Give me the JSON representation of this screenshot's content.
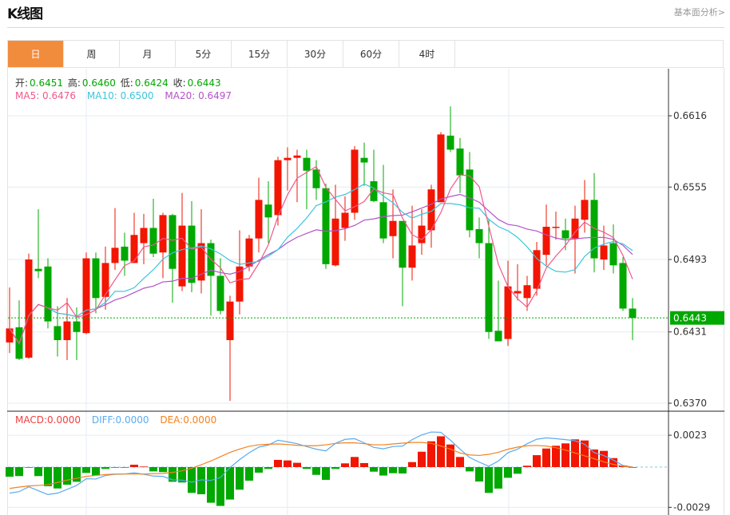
{
  "header": {
    "title": "K线图",
    "link": "基本面分析>"
  },
  "tabs": [
    {
      "label": "日",
      "active": true
    },
    {
      "label": "周"
    },
    {
      "label": "月"
    },
    {
      "label": "5分"
    },
    {
      "label": "15分"
    },
    {
      "label": "30分"
    },
    {
      "label": "60分"
    },
    {
      "label": "4时"
    }
  ],
  "ohlc_legend": {
    "open_label": "开:",
    "open": "0.6451",
    "high_label": "高:",
    "high": "0.6460",
    "low_label": "低:",
    "low": "0.6424",
    "close_label": "收:",
    "close": "0.6443"
  },
  "ma_legend": {
    "ma5": "MA5: 0.6476",
    "ma10": "MA10: 0.6500",
    "ma20": "MA20: 0.6497"
  },
  "macd_legend": {
    "macd": "MACD:0.0000",
    "diff": "DIFF:0.0000",
    "dea": "DEA:0.0000"
  },
  "colors": {
    "up": "#f21500",
    "down": "#00a800",
    "ma5": "#f0588a",
    "ma10": "#3ec5db",
    "ma20": "#b452c9",
    "diff": "#5aabf0",
    "dea": "#f5821f",
    "accent": "#f28c3d"
  },
  "chart_data": {
    "type": "candlestick",
    "price_axis_ticks": [
      "0.6616",
      "0.6555",
      "0.6493",
      "0.6431",
      "0.6370"
    ],
    "price_range": [
      0.637,
      0.6616
    ],
    "current_price": "0.6443",
    "macd_axis_ticks": [
      "0.0023",
      "-0.0029"
    ],
    "macd_range": [
      -0.0029,
      0.0023
    ],
    "candles": [
      [
        0.6422,
        0.6469,
        0.6413,
        0.6434
      ],
      [
        0.6435,
        0.6458,
        0.6407,
        0.6408
      ],
      [
        0.6409,
        0.6498,
        0.6408,
        0.6493
      ],
      [
        0.6485,
        0.6536,
        0.6477,
        0.6483
      ],
      [
        0.6487,
        0.6494,
        0.6434,
        0.644
      ],
      [
        0.6436,
        0.6453,
        0.641,
        0.6424
      ],
      [
        0.6424,
        0.646,
        0.6407,
        0.644
      ],
      [
        0.644,
        0.6452,
        0.6407,
        0.6431
      ],
      [
        0.643,
        0.6499,
        0.6429,
        0.6494
      ],
      [
        0.6494,
        0.6499,
        0.6447,
        0.646
      ],
      [
        0.6461,
        0.6504,
        0.645,
        0.649
      ],
      [
        0.649,
        0.6537,
        0.6484,
        0.6503
      ],
      [
        0.6504,
        0.6516,
        0.6479,
        0.6492
      ],
      [
        0.649,
        0.6533,
        0.649,
        0.6514
      ],
      [
        0.6507,
        0.6532,
        0.6489,
        0.652
      ],
      [
        0.652,
        0.6545,
        0.6495,
        0.6498
      ],
      [
        0.6499,
        0.6533,
        0.6477,
        0.6531
      ],
      [
        0.6531,
        0.6532,
        0.6456,
        0.6485
      ],
      [
        0.647,
        0.655,
        0.6466,
        0.6522
      ],
      [
        0.6522,
        0.6543,
        0.6465,
        0.6473
      ],
      [
        0.6475,
        0.6536,
        0.6464,
        0.6507
      ],
      [
        0.6507,
        0.651,
        0.6445,
        0.6479
      ],
      [
        0.6479,
        0.6494,
        0.6446,
        0.6449
      ],
      [
        0.6424,
        0.6462,
        0.6372,
        0.6457
      ],
      [
        0.6457,
        0.6518,
        0.6446,
        0.6487
      ],
      [
        0.6487,
        0.6514,
        0.6483,
        0.6511
      ],
      [
        0.6511,
        0.6563,
        0.6499,
        0.6544
      ],
      [
        0.654,
        0.656,
        0.6507,
        0.6529
      ],
      [
        0.6531,
        0.6581,
        0.6522,
        0.6578
      ],
      [
        0.6578,
        0.6589,
        0.6552,
        0.658
      ],
      [
        0.658,
        0.6587,
        0.6542,
        0.6582
      ],
      [
        0.658,
        0.6587,
        0.6536,
        0.6569
      ],
      [
        0.657,
        0.6578,
        0.6544,
        0.6554
      ],
      [
        0.6554,
        0.6558,
        0.6485,
        0.6489
      ],
      [
        0.6488,
        0.6557,
        0.6487,
        0.6528
      ],
      [
        0.652,
        0.6547,
        0.6509,
        0.6533
      ],
      [
        0.6533,
        0.659,
        0.6527,
        0.6587
      ],
      [
        0.658,
        0.6593,
        0.6556,
        0.6576
      ],
      [
        0.656,
        0.6587,
        0.6542,
        0.6543
      ],
      [
        0.6542,
        0.6574,
        0.6507,
        0.6511
      ],
      [
        0.6513,
        0.6553,
        0.6494,
        0.6526
      ],
      [
        0.6526,
        0.6526,
        0.6453,
        0.6486
      ],
      [
        0.6486,
        0.6539,
        0.6475,
        0.6505
      ],
      [
        0.6507,
        0.6536,
        0.6497,
        0.6522
      ],
      [
        0.6518,
        0.6557,
        0.6503,
        0.6553
      ],
      [
        0.6542,
        0.6602,
        0.6542,
        0.66
      ],
      [
        0.6599,
        0.6624,
        0.6585,
        0.6587
      ],
      [
        0.6588,
        0.6597,
        0.655,
        0.6565
      ],
      [
        0.657,
        0.6585,
        0.6512,
        0.6518
      ],
      [
        0.6519,
        0.6529,
        0.6494,
        0.6507
      ],
      [
        0.6507,
        0.6527,
        0.6425,
        0.6431
      ],
      [
        0.6432,
        0.6475,
        0.6423,
        0.6423
      ],
      [
        0.6425,
        0.6492,
        0.6419,
        0.647
      ],
      [
        0.6464,
        0.6489,
        0.6458,
        0.6466
      ],
      [
        0.646,
        0.6479,
        0.6449,
        0.6471
      ],
      [
        0.6468,
        0.6508,
        0.6462,
        0.6501
      ],
      [
        0.6497,
        0.654,
        0.6488,
        0.6521
      ],
      [
        0.652,
        0.6534,
        0.651,
        0.6521
      ],
      [
        0.6518,
        0.6528,
        0.6501,
        0.6511
      ],
      [
        0.6511,
        0.6539,
        0.6481,
        0.6528
      ],
      [
        0.6527,
        0.6561,
        0.6516,
        0.6544
      ],
      [
        0.6544,
        0.6567,
        0.6482,
        0.6494
      ],
      [
        0.6493,
        0.6522,
        0.6484,
        0.6505
      ],
      [
        0.6507,
        0.6523,
        0.6481,
        0.6488
      ],
      [
        0.649,
        0.6495,
        0.6449,
        0.6451
      ],
      [
        0.6451,
        0.646,
        0.6424,
        0.6443
      ]
    ],
    "macd_hist": [
      -0.00069,
      -0.00065,
      -2e-05,
      -0.00065,
      -0.00138,
      -0.00154,
      -0.00127,
      -0.00106,
      -0.00042,
      -0.00061,
      -0.00013,
      -2e-05,
      -2e-05,
      0.00017,
      4e-05,
      -0.00031,
      -0.00036,
      -0.00106,
      -0.00111,
      -0.00186,
      -0.00196,
      -0.00257,
      -0.0028,
      -0.00234,
      -0.00163,
      -0.00098,
      -0.0004,
      -0.00013,
      0.00052,
      0.00048,
      0.00031,
      -0.00013,
      -0.00056,
      -0.00092,
      -0.00013,
      0.00027,
      0.00073,
      0.00029,
      -0.00033,
      -0.00061,
      -0.00044,
      -0.00046,
      0.00036,
      0.00111,
      0.00186,
      0.00222,
      0.00163,
      0.00073,
      -0.00031,
      -0.00104,
      -0.00186,
      -0.00155,
      -0.00077,
      -0.00048,
      0.0001,
      0.00086,
      0.00134,
      0.00154,
      0.00171,
      0.002,
      0.00192,
      0.00127,
      0.00117,
      0.00065,
      0.00012,
      0.0
    ],
    "diff": [
      -0.00188,
      -0.00177,
      -0.00142,
      -0.0017,
      -0.00198,
      -0.00188,
      -0.00161,
      -0.00132,
      -0.00084,
      -0.00086,
      -0.00061,
      -0.00052,
      -0.0005,
      -0.00042,
      -0.00052,
      -0.00065,
      -0.00067,
      -0.00092,
      -0.00094,
      -0.00109,
      -0.00092,
      -0.00096,
      -0.00075,
      -4e-05,
      0.00054,
      0.00104,
      0.00144,
      0.00159,
      0.00194,
      0.00182,
      0.00169,
      0.00148,
      0.00129,
      0.00117,
      0.00171,
      0.002,
      0.00205,
      0.00175,
      0.00142,
      0.00132,
      0.00148,
      0.00152,
      0.00198,
      0.00232,
      0.00253,
      0.00251,
      0.00194,
      0.0013,
      0.00069,
      0.00036,
      6e-05,
      0.00044,
      0.00104,
      0.00129,
      0.00169,
      0.00201,
      0.00211,
      0.00205,
      0.00198,
      0.0019,
      0.00165,
      0.00104,
      0.00083,
      0.0005,
      0.00012,
      0.0
    ],
    "dea": [
      -0.00154,
      -0.00144,
      -0.00136,
      -0.00132,
      -0.00127,
      -0.00111,
      -0.00094,
      -0.00081,
      -0.00067,
      -0.0006,
      -0.00054,
      -0.0005,
      -0.0005,
      -0.0005,
      -0.0005,
      -0.00048,
      -0.00046,
      -0.00038,
      -0.00027,
      -8e-05,
      0.00017,
      0.00044,
      0.00075,
      0.00106,
      0.0013,
      0.0015,
      0.00161,
      0.00165,
      0.00167,
      0.00163,
      0.00157,
      0.00154,
      0.00154,
      0.00161,
      0.00171,
      0.00175,
      0.00175,
      0.00169,
      0.00161,
      0.00161,
      0.00167,
      0.00173,
      0.00178,
      0.00178,
      0.00171,
      0.00152,
      0.00129,
      0.00102,
      0.00088,
      0.00084,
      0.00092,
      0.00107,
      0.00129,
      0.00144,
      0.00154,
      0.00156,
      0.00152,
      0.0014,
      0.00123,
      0.00102,
      0.00081,
      0.0006,
      0.00038,
      0.00019,
      6e-05,
      0.0
    ]
  }
}
